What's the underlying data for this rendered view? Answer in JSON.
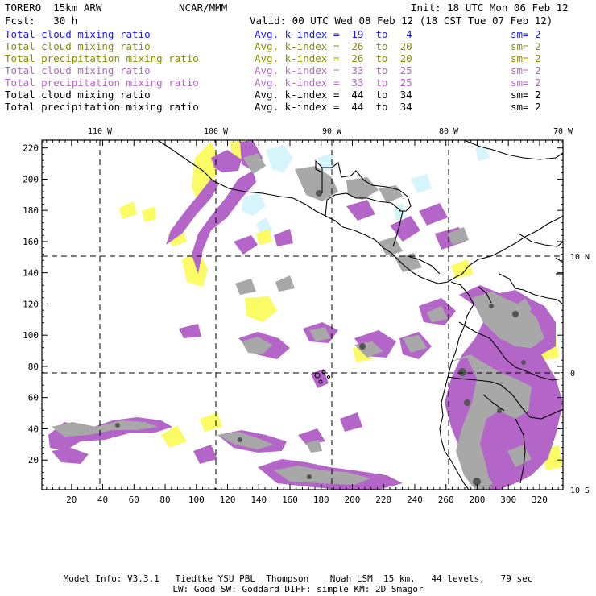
{
  "header": {
    "model": "TORERO  15km ARW",
    "center": "NCAR/MMM",
    "init": "Init: 18 UTC Mon 06 Feb 12",
    "fcst": "Fcst:   30 h",
    "valid": "Valid: 00 UTC Wed 08 Feb 12 (18 CST Tue 07 Feb 12)"
  },
  "legend": [
    {
      "field": "Total cloud mixing ratio",
      "index": "Avg. k-index =  19  to   4",
      "sm": "sm= 2",
      "color": "#1a1aff"
    },
    {
      "field": "Total cloud mixing ratio",
      "index": "Avg. k-index =  26  to  20",
      "sm": "sm= 2",
      "color": "#8c8c00"
    },
    {
      "field": "Total precipitation mixing ratio",
      "index": "Avg. k-index =  26  to  20",
      "sm": "sm= 2",
      "color": "#8c8c00"
    },
    {
      "field": "Total cloud mixing ratio",
      "index": "Avg. k-index =  33  to  25",
      "sm": "sm= 2",
      "color": "#b466c8"
    },
    {
      "field": "Total precipitation mixing ratio",
      "index": "Avg. k-index =  33  to  25",
      "sm": "sm= 2",
      "color": "#b466c8"
    },
    {
      "field": "Total cloud mixing ratio",
      "index": "Avg. k-index =  44  to  34",
      "sm": "sm= 2",
      "color": "#000000"
    },
    {
      "field": "Total precipitation mixing ratio",
      "index": "Avg. k-index =  44  to  34",
      "sm": "sm= 2",
      "color": "#000000"
    }
  ],
  "map": {
    "lon_labels": [
      "110 W",
      "100 W",
      "90 W",
      "80 W",
      "70 W"
    ],
    "lat_labels": [
      "10 N",
      "0",
      "10 S"
    ],
    "x_ticks": [
      "20",
      "40",
      "60",
      "80",
      "100",
      "120",
      "140",
      "160",
      "180",
      "200",
      "220",
      "240",
      "260",
      "280",
      "300",
      "320"
    ],
    "y_ticks": [
      "20",
      "40",
      "60",
      "80",
      "100",
      "120",
      "140",
      "160",
      "180",
      "200",
      "220"
    ],
    "x_range": [
      1,
      335
    ],
    "y_range": [
      1,
      225
    ],
    "fill_colors": {
      "light_cyan": "#d6f4fb",
      "yellow": "#fbfb66",
      "purple": "#b466c8",
      "gray": "#a8a8a8",
      "dark_gray": "#555555"
    }
  },
  "footer": {
    "line1": "Model Info: V3.3.1   Tiedtke YSU PBL  Thompson    Noah LSM  15 km,   44 levels,   79 sec",
    "line2": "LW: Godd SW: Goddard DIFF: simple KM: 2D Smagor"
  }
}
